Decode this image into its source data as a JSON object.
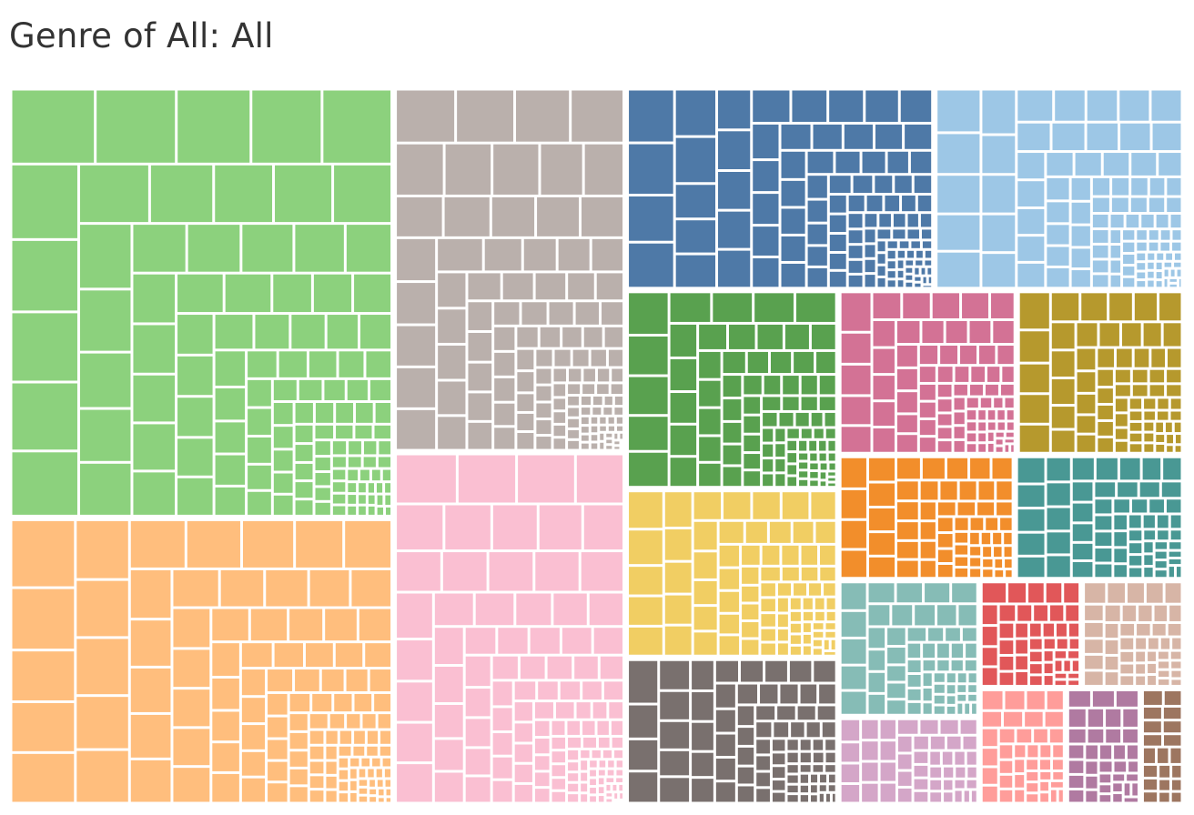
{
  "title": "Genre of All: All",
  "chart_data": {
    "type": "treemap",
    "title": "Genre of All: All",
    "labels_shown": false,
    "legend": "none",
    "groups": [
      {
        "color": "#8cd17d",
        "value": 18,
        "items": 120
      },
      {
        "color": "#ffbe7d",
        "value": 12,
        "items": 120
      },
      {
        "color": "#bab0ac",
        "value": 9.2,
        "items": 120
      },
      {
        "color": "#fabfd2",
        "value": 8.9,
        "items": 120
      },
      {
        "color": "#4e79a7",
        "value": 6.8,
        "items": 110
      },
      {
        "color": "#9dc7e6",
        "value": 5.5,
        "items": 100
      },
      {
        "color": "#59a14f",
        "value": 4.6,
        "items": 90
      },
      {
        "color": "#f1ce63",
        "value": 3.9,
        "items": 80
      },
      {
        "color": "#79706e",
        "value": 3.4,
        "items": 80
      },
      {
        "color": "#d37295",
        "value": 3.2,
        "items": 80
      },
      {
        "color": "#b6992d",
        "value": 3.0,
        "items": 70
      },
      {
        "color": "#f28e2b",
        "value": 2.4,
        "items": 60
      },
      {
        "color": "#499894",
        "value": 2.3,
        "items": 60
      },
      {
        "color": "#86bcb6",
        "value": 2.1,
        "items": 60
      },
      {
        "color": "#d4a6c8",
        "value": 1.35,
        "items": 45
      },
      {
        "color": "#e15759",
        "value": 1.2,
        "items": 45
      },
      {
        "color": "#d7b5a6",
        "value": 1.2,
        "items": 45
      },
      {
        "color": "#ff9d9a",
        "value": 1.1,
        "items": 40
      },
      {
        "color": "#b07aa1",
        "value": 0.95,
        "items": 35
      },
      {
        "color": "#9d7660",
        "value": 0.55,
        "items": 20
      }
    ]
  }
}
